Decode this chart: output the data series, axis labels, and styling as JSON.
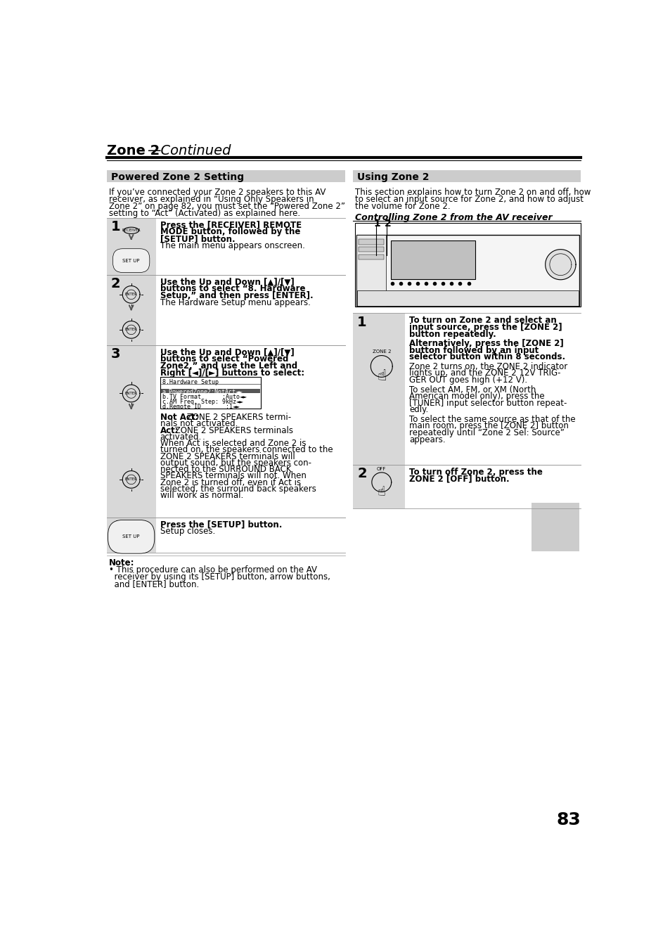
{
  "page_number": "83",
  "bg_color": "#ffffff",
  "title_bold": "Zone 2",
  "title_italic": "—Continued",
  "left_section_title": "Powered Zone 2 Setting",
  "right_section_title": "Using Zone 2",
  "left_intro": "If you’ve connected your Zone 2 speakers to this AV receiver, as explained in “Using Only Speakers in Zone 2” on page 82, you must set the “Powered Zone 2” setting to “Act” (Activated) as explained here.",
  "right_intro_lines": [
    "This section explains how to turn Zone 2 on and off, how",
    "to select an input source for Zone 2, and how to adjust",
    "the volume for Zone 2."
  ],
  "controlling_title": "Controlling Zone 2 from the AV receiver",
  "note_bold": "Note:",
  "note_bullet": "• This procedure can also be performed on the AV receiver by using its [SETUP] button, arrow buttons, and [ENTER] button.",
  "step1_bold": "Press the [RECEIVER] REMOTE MODE button, followed by the [SETUP] button.",
  "step1_normal": "The main menu appears onscreen.",
  "step2_bold": "Use the Up and Down [▲]/[▼] buttons to select “8. Hardware Setup,” and then press [ENTER].",
  "step2_normal": "The Hardware Setup menu appears.",
  "step3_bold": "Use the Up and Down [▲]/[▼] buttons to select “Powered Zone2,” and use the Left and Right [◄]/[►] buttons to select:",
  "step3_screen": [
    "8.Hardware Setup",
    "--------------------------",
    "a.PoweredZone2:NotAct◄►",
    "b.TV Format      :Auto◄►",
    "c.AM Freq. Step: 9kHz◄►",
    "d.Remote ID       :1◄►"
  ],
  "step3_extra": [
    [
      "bold",
      "Not Act:"
    ],
    [
      "normal",
      " ZONE 2 SPEAKERS termi-\nnals not activated."
    ],
    [
      "bold",
      "Act:"
    ],
    [
      "normal",
      " ZONE 2 SPEAKERS terminals\nactivated."
    ],
    [
      "normal",
      "When Act is selected and Zone 2 is\nturned on, the speakers connected to the\nZONE 2 SPEAKERS terminals will\noutput sound, but the speakers con-\nnected to the SURROUND BACK\nSPEAKERS terminals will not. When\nZone 2 is turned off, even if Act is\nselected, the surround back speakers\nwill work as normal."
    ]
  ],
  "step4_bold": "Press the [SETUP] button.",
  "step4_normal": "Setup closes.",
  "rstep1_bold1": "To turn on Zone 2 and select an\ninput source, press the [ZONE 2]\nbutton repeatedly.",
  "rstep1_bold2": "Alternatively, press the [ZONE 2]\nbutton followed by an input\nselector button within 8 seconds.",
  "rstep1_normal": [
    "Zone 2 turns on, the ZONE 2 indicator\nlights up, and the ZONE 2 12V TRIG-\nGER OUT goes high (+12 V).",
    "To select AM, FM, or XM (North\nAmerican model only), press the\n[TUNER] input selector button repeat-\nedly.",
    "To select the same source as that of the\nmain room, press the [ZONE 2] button\nrepeatedly until “Zone 2 Sel: Source”\nappears."
  ],
  "rstep2_bold": "To turn off Zone 2, press the\nZONE 2 [OFF] button.",
  "section_bg": "#cccccc",
  "step_bg": "#d8d8d8",
  "screen_highlight": "#555555",
  "gray_box_right": "#cccccc"
}
